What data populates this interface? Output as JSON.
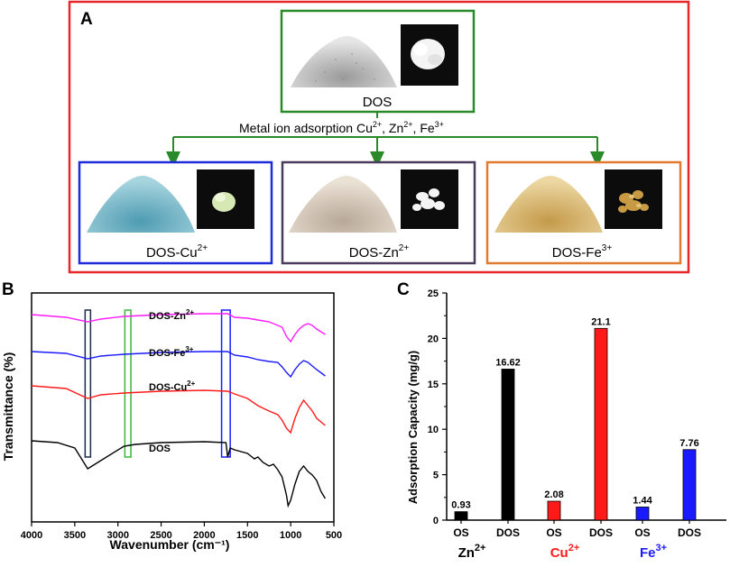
{
  "panelA": {
    "label": "A",
    "center": {
      "name": "DOS"
    },
    "arrow_label": {
      "prefix": "Metal ion adsorption",
      "ions": [
        {
          "base": "Cu",
          "charge": "2+",
          "sep": ","
        },
        {
          "base": "Zn",
          "charge": "2+",
          "sep": ","
        },
        {
          "base": "Fe",
          "charge": "3+",
          "sep": ""
        }
      ]
    },
    "products": [
      {
        "base": "DOS-Cu",
        "charge": "2+",
        "border": "#1f2ad9",
        "powder": "#7ab8c9",
        "crystal": "#d6e8b4"
      },
      {
        "base": "DOS-Zn",
        "charge": "2+",
        "border": "#4a3a5c",
        "powder": "#d6c8b8",
        "crystal": "#f4f4f4"
      },
      {
        "base": "DOS-Fe",
        "charge": "3+",
        "border": "#e07a2e",
        "powder": "#d8b56e",
        "crystal": "#c99a44"
      }
    ],
    "colors": {
      "outer_border": "#e8262a",
      "center_border": "#2a8a2a",
      "arrow": "#2a8a2a",
      "powder_gray": "#b8b8b8"
    }
  },
  "panelB": {
    "label": "B",
    "chart_data": {
      "type": "line",
      "xlabel": "Wavenumber (cm⁻¹)",
      "ylabel": "Transmittance (%)",
      "xlim": [
        4000,
        500
      ],
      "xticks": [
        4000,
        3500,
        3000,
        2500,
        2000,
        1500,
        1000,
        500
      ],
      "series": [
        {
          "name": "DOS-Zn",
          "charge": "2+",
          "color": "#ff1aff",
          "offset": 0,
          "points": [
            [
              4000,
              0
            ],
            [
              3600,
              3
            ],
            [
              3350,
              8
            ],
            [
              3200,
              5
            ],
            [
              2930,
              2
            ],
            [
              2500,
              0
            ],
            [
              2000,
              -1
            ],
            [
              1730,
              -1
            ],
            [
              1650,
              3
            ],
            [
              1500,
              4
            ],
            [
              1380,
              6
            ],
            [
              1250,
              8
            ],
            [
              1100,
              14
            ],
            [
              1050,
              24
            ],
            [
              1000,
              30
            ],
            [
              950,
              22
            ],
            [
              900,
              16
            ],
            [
              850,
              12
            ],
            [
              800,
              10
            ],
            [
              750,
              12
            ],
            [
              700,
              16
            ],
            [
              600,
              22
            ]
          ]
        },
        {
          "name": "DOS-Fe",
          "charge": "3+",
          "color": "#1a1aff",
          "offset": 41,
          "points": [
            [
              4000,
              0
            ],
            [
              3600,
              2
            ],
            [
              3350,
              8
            ],
            [
              3200,
              5
            ],
            [
              2930,
              3
            ],
            [
              2500,
              1
            ],
            [
              2000,
              0
            ],
            [
              1730,
              0
            ],
            [
              1650,
              4
            ],
            [
              1500,
              6
            ],
            [
              1380,
              9
            ],
            [
              1250,
              11
            ],
            [
              1150,
              12
            ],
            [
              1100,
              17
            ],
            [
              1050,
              23
            ],
            [
              1000,
              28
            ],
            [
              950,
              20
            ],
            [
              900,
              14
            ],
            [
              850,
              10
            ],
            [
              800,
              12
            ],
            [
              750,
              16
            ],
            [
              700,
              20
            ],
            [
              600,
              27
            ]
          ]
        },
        {
          "name": "DOS-Cu",
          "charge": "2+",
          "color": "#ff1a1a",
          "offset": 79,
          "points": [
            [
              4000,
              0
            ],
            [
              3600,
              3
            ],
            [
              3350,
              14
            ],
            [
              3200,
              10
            ],
            [
              2930,
              8
            ],
            [
              2500,
              6
            ],
            [
              2000,
              5
            ],
            [
              1730,
              6
            ],
            [
              1650,
              9
            ],
            [
              1500,
              14
            ],
            [
              1380,
              22
            ],
            [
              1250,
              28
            ],
            [
              1150,
              32
            ],
            [
              1100,
              38
            ],
            [
              1050,
              47
            ],
            [
              1000,
              52
            ],
            [
              950,
              36
            ],
            [
              900,
              24
            ],
            [
              850,
              16
            ],
            [
              800,
              22
            ],
            [
              750,
              28
            ],
            [
              700,
              36
            ],
            [
              600,
              44
            ]
          ]
        },
        {
          "name": "DOS",
          "charge": "",
          "color": "#000000",
          "offset": 140,
          "points": [
            [
              4000,
              0
            ],
            [
              3700,
              2
            ],
            [
              3500,
              8
            ],
            [
              3350,
              31
            ],
            [
              3200,
              22
            ],
            [
              2930,
              6
            ],
            [
              2800,
              4
            ],
            [
              2500,
              2
            ],
            [
              2000,
              1
            ],
            [
              1750,
              2
            ],
            [
              1730,
              18
            ],
            [
              1700,
              8
            ],
            [
              1650,
              10
            ],
            [
              1500,
              14
            ],
            [
              1420,
              20
            ],
            [
              1380,
              18
            ],
            [
              1320,
              24
            ],
            [
              1250,
              28
            ],
            [
              1200,
              26
            ],
            [
              1150,
              32
            ],
            [
              1100,
              40
            ],
            [
              1050,
              60
            ],
            [
              1030,
              72
            ],
            [
              1000,
              66
            ],
            [
              950,
              48
            ],
            [
              900,
              34
            ],
            [
              850,
              28
            ],
            [
              800,
              34
            ],
            [
              750,
              38
            ],
            [
              700,
              44
            ],
            [
              650,
              56
            ],
            [
              600,
              64
            ]
          ]
        }
      ],
      "highlight_boxes": [
        {
          "from": 3380,
          "to": 3320,
          "color": "#1a2a4a"
        },
        {
          "from": 2920,
          "to": 2850,
          "color": "#3ab83a"
        },
        {
          "from": 1800,
          "to": 1700,
          "color": "#1a1aff"
        }
      ]
    }
  },
  "panelC": {
    "label": "C",
    "chart_data": {
      "type": "bar",
      "ylabel": "Adsorption Capacity (mg/g)",
      "ylim": [
        0,
        25
      ],
      "yticks": [
        0,
        5,
        10,
        15,
        20,
        25
      ],
      "groups": [
        {
          "ion": "Zn",
          "charge": "2+",
          "label_color": "#000000",
          "bar_color": "#000000",
          "bars": [
            {
              "category": "OS",
              "value": 0.93,
              "label": "0.93"
            },
            {
              "category": "DOS",
              "value": 16.62,
              "label": "16.62"
            }
          ]
        },
        {
          "ion": "Cu",
          "charge": "2+",
          "label_color": "#ff1a1a",
          "bar_color": "#ff1a1a",
          "bars": [
            {
              "category": "OS",
              "value": 2.08,
              "label": "2.08"
            },
            {
              "category": "DOS",
              "value": 21.1,
              "label": "21.1"
            }
          ]
        },
        {
          "ion": "Fe",
          "charge": "3+",
          "label_color": "#1a1aff",
          "bar_color": "#1a1aff",
          "bars": [
            {
              "category": "OS",
              "value": 1.44,
              "label": "1.44"
            },
            {
              "category": "DOS",
              "value": 7.76,
              "label": "7.76"
            }
          ]
        }
      ]
    }
  }
}
